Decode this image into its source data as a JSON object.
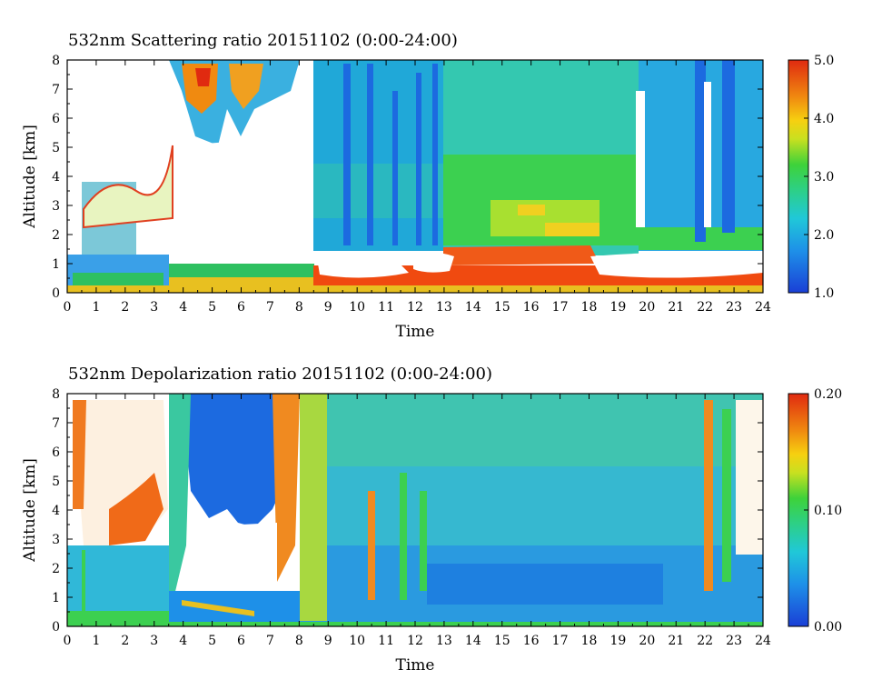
{
  "chart_data": [
    {
      "type": "heatmap",
      "title": "532nm Scattering ratio  20151102 (0:00-24:00)",
      "xlabel": "Time",
      "ylabel": "Altitude [km]",
      "xlim": [
        0,
        24
      ],
      "ylim": [
        0,
        8
      ],
      "x_ticks": [
        "0",
        "1",
        "2",
        "3",
        "4",
        "5",
        "6",
        "7",
        "8",
        "9",
        "10",
        "11",
        "12",
        "13",
        "14",
        "15",
        "16",
        "17",
        "18",
        "19",
        "20",
        "21",
        "22",
        "23",
        "24"
      ],
      "y_ticks": [
        "0",
        "1",
        "2",
        "3",
        "4",
        "5",
        "6",
        "7",
        "8"
      ],
      "colorbar": {
        "min": 1.0,
        "max": 5.0,
        "ticks": [
          {
            "value": 1.0,
            "label": "1.0"
          },
          {
            "value": 2.0,
            "label": "2.0"
          },
          {
            "value": 3.0,
            "label": "3.0"
          },
          {
            "value": 4.0,
            "label": "4.0"
          },
          {
            "value": 5.0,
            "label": "5.0"
          }
        ],
        "colormap": "rainbow (blue-cyan-green-yellow-orange-red)"
      },
      "features": [
        {
          "time": [
            0.0,
            3.5
          ],
          "alt": [
            0.2,
            1.5
          ],
          "value": 2.0
        },
        {
          "time": [
            3.5,
            8.5
          ],
          "alt": [
            1.5,
            8.0
          ],
          "value": "no data (white)"
        },
        {
          "time": [
            8.5,
            13.0
          ],
          "alt": [
            0.3,
            8.0
          ],
          "value": 1.8
        },
        {
          "time": [
            13.0,
            19.5
          ],
          "alt": [
            1.5,
            8.0
          ],
          "value": 2.8
        },
        {
          "time": [
            13.0,
            18.0
          ],
          "alt": [
            0.2,
            1.4
          ],
          "value": 4.6
        },
        {
          "time": [
            19.5,
            24.0
          ],
          "alt": [
            1.5,
            8.0
          ],
          "value": 2.0
        }
      ]
    },
    {
      "type": "heatmap",
      "title": "532nm Depolarization ratio  20151102 (0:00-24:00)",
      "xlabel": "Time",
      "ylabel": "Altitude [km]",
      "xlim": [
        0,
        24
      ],
      "ylim": [
        0,
        8
      ],
      "x_ticks": [
        "0",
        "1",
        "2",
        "3",
        "4",
        "5",
        "6",
        "7",
        "8",
        "9",
        "10",
        "11",
        "12",
        "13",
        "14",
        "15",
        "16",
        "17",
        "18",
        "19",
        "20",
        "21",
        "22",
        "23",
        "24"
      ],
      "y_ticks": [
        "0",
        "1",
        "2",
        "3",
        "4",
        "5",
        "6",
        "7",
        "8"
      ],
      "colorbar": {
        "min": 0.0,
        "max": 0.2,
        "ticks": [
          {
            "value": 0.0,
            "label": "0.00"
          },
          {
            "value": 0.1,
            "label": "0.10"
          },
          {
            "value": 0.2,
            "label": "0.20"
          }
        ],
        "colormap": "rainbow (blue-cyan-green-yellow-orange-red)"
      },
      "features": [
        {
          "time": [
            0.0,
            3.5
          ],
          "alt": [
            0.0,
            2.7
          ],
          "value": 0.05
        },
        {
          "time": [
            0.5,
            3.5
          ],
          "alt": [
            2.7,
            8.0
          ],
          "value": 0.18
        },
        {
          "time": [
            4.0,
            7.5
          ],
          "alt": [
            3.5,
            8.0
          ],
          "value": 0.02
        },
        {
          "time": [
            8.5,
            24.0
          ],
          "alt": [
            0.2,
            2.5
          ],
          "value": 0.03
        },
        {
          "time": [
            8.5,
            24.0
          ],
          "alt": [
            2.5,
            8.0
          ],
          "value": 0.06
        }
      ]
    }
  ]
}
